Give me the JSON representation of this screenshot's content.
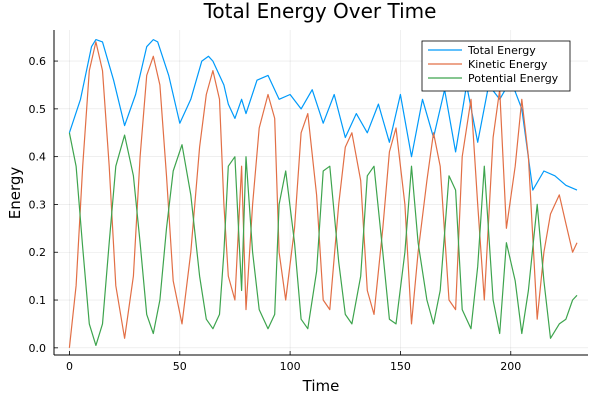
{
  "chart_data": {
    "type": "line",
    "title": "Total Energy Over Time",
    "xlabel": "Time",
    "ylabel": "Energy",
    "xlim": [
      -7,
      235
    ],
    "ylim": [
      -0.015,
      0.665
    ],
    "xticks": [
      0,
      50,
      100,
      150,
      200
    ],
    "yticks": [
      0.0,
      0.1,
      0.2,
      0.3,
      0.4,
      0.5,
      0.6
    ],
    "ytick_labels": [
      "0.0",
      "0.1",
      "0.2",
      "0.3",
      "0.4",
      "0.5",
      "0.6"
    ],
    "grid": true,
    "legend_position": "top-right",
    "series": [
      {
        "name": "Total Energy",
        "color": "#009AFA",
        "x": [
          0,
          5,
          10,
          12,
          15,
          20,
          25,
          30,
          35,
          38,
          40,
          45,
          50,
          55,
          60,
          63,
          65,
          70,
          72,
          75,
          78,
          80,
          85,
          90,
          95,
          100,
          105,
          110,
          115,
          120,
          125,
          130,
          135,
          140,
          145,
          150,
          155,
          160,
          165,
          170,
          175,
          180,
          185,
          190,
          195,
          200,
          205,
          210,
          215,
          220,
          225,
          230
        ],
        "y": [
          0.45,
          0.52,
          0.63,
          0.645,
          0.64,
          0.56,
          0.465,
          0.53,
          0.63,
          0.645,
          0.64,
          0.57,
          0.47,
          0.52,
          0.6,
          0.61,
          0.6,
          0.55,
          0.51,
          0.48,
          0.52,
          0.49,
          0.56,
          0.57,
          0.52,
          0.53,
          0.5,
          0.54,
          0.47,
          0.53,
          0.44,
          0.49,
          0.45,
          0.51,
          0.43,
          0.53,
          0.4,
          0.52,
          0.44,
          0.54,
          0.41,
          0.55,
          0.43,
          0.55,
          0.52,
          0.56,
          0.5,
          0.33,
          0.37,
          0.36,
          0.34,
          0.33
        ]
      },
      {
        "name": "Kinetic Energy",
        "color": "#E26F46",
        "x": [
          0,
          3,
          6,
          9,
          12,
          15,
          18,
          21,
          25,
          29,
          32,
          35,
          38,
          41,
          44,
          47,
          51,
          55,
          59,
          62,
          65,
          68,
          70,
          72,
          75,
          78,
          80,
          83,
          86,
          90,
          93,
          95,
          98,
          102,
          105,
          108,
          112,
          115,
          118,
          122,
          125,
          128,
          132,
          135,
          138,
          142,
          145,
          148,
          152,
          155,
          158,
          162,
          165,
          168,
          172,
          175,
          178,
          182,
          185,
          188,
          192,
          195,
          198,
          202,
          205,
          208,
          212,
          215,
          218,
          222,
          225,
          228,
          230
        ],
        "y": [
          0.0,
          0.13,
          0.38,
          0.58,
          0.64,
          0.58,
          0.38,
          0.13,
          0.02,
          0.15,
          0.4,
          0.57,
          0.61,
          0.55,
          0.36,
          0.14,
          0.05,
          0.2,
          0.42,
          0.53,
          0.58,
          0.52,
          0.3,
          0.15,
          0.1,
          0.38,
          0.08,
          0.3,
          0.46,
          0.53,
          0.48,
          0.2,
          0.1,
          0.25,
          0.45,
          0.49,
          0.32,
          0.1,
          0.08,
          0.3,
          0.42,
          0.45,
          0.35,
          0.12,
          0.07,
          0.25,
          0.41,
          0.46,
          0.3,
          0.05,
          0.2,
          0.35,
          0.45,
          0.38,
          0.1,
          0.08,
          0.4,
          0.52,
          0.3,
          0.1,
          0.44,
          0.54,
          0.25,
          0.38,
          0.52,
          0.4,
          0.06,
          0.2,
          0.28,
          0.32,
          0.26,
          0.2,
          0.22
        ]
      },
      {
        "name": "Potential Energy",
        "color": "#3EA44E",
        "x": [
          0,
          3,
          6,
          9,
          12,
          15,
          18,
          21,
          25,
          29,
          32,
          35,
          38,
          41,
          44,
          47,
          51,
          55,
          59,
          62,
          65,
          68,
          70,
          72,
          75,
          78,
          80,
          83,
          86,
          90,
          93,
          95,
          98,
          102,
          105,
          108,
          112,
          115,
          118,
          122,
          125,
          128,
          132,
          135,
          138,
          142,
          145,
          148,
          152,
          155,
          158,
          162,
          165,
          168,
          172,
          175,
          178,
          182,
          185,
          188,
          192,
          195,
          198,
          202,
          205,
          208,
          212,
          215,
          218,
          222,
          225,
          228,
          230
        ],
        "y": [
          0.45,
          0.38,
          0.21,
          0.05,
          0.005,
          0.05,
          0.22,
          0.38,
          0.445,
          0.36,
          0.22,
          0.07,
          0.03,
          0.1,
          0.25,
          0.37,
          0.425,
          0.32,
          0.15,
          0.06,
          0.04,
          0.07,
          0.2,
          0.38,
          0.4,
          0.12,
          0.4,
          0.2,
          0.08,
          0.04,
          0.07,
          0.3,
          0.37,
          0.22,
          0.06,
          0.04,
          0.16,
          0.37,
          0.38,
          0.18,
          0.07,
          0.05,
          0.15,
          0.36,
          0.38,
          0.2,
          0.06,
          0.05,
          0.2,
          0.38,
          0.22,
          0.1,
          0.05,
          0.12,
          0.36,
          0.33,
          0.08,
          0.04,
          0.17,
          0.38,
          0.1,
          0.03,
          0.22,
          0.14,
          0.03,
          0.12,
          0.3,
          0.14,
          0.02,
          0.05,
          0.06,
          0.1,
          0.11
        ]
      }
    ]
  }
}
